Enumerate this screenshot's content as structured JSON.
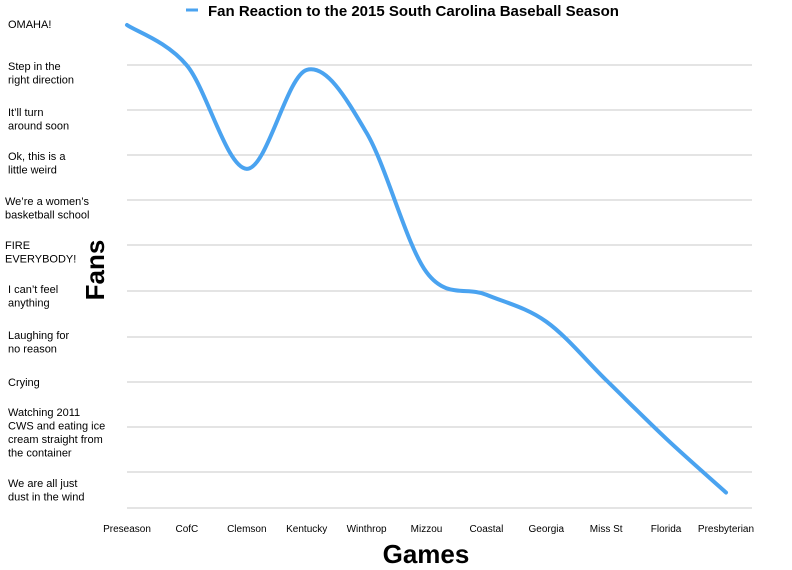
{
  "chart_data": {
    "type": "line",
    "title": "Fan Reaction to the 2015 South Carolina Baseball Season",
    "xlabel": "Games",
    "ylabel": "Fans",
    "categories": [
      "Preseason",
      "CofC",
      "Clemson",
      "Kentucky",
      "Winthrop",
      "Mizzou",
      "Coastal",
      "Georgia",
      "Miss St",
      "Florida",
      "Presbyterian"
    ],
    "y_levels": [
      "We are all just dust in the wind",
      "Watching 2011 CWS and eating ice cream straight from the container",
      "Crying",
      "Laughing for no reason",
      "I can't feel anything",
      "FIRE EVERYBODY!",
      "We're a women's basketball school",
      "Ok, this is a little weird",
      "It'll turn around soon",
      "Step in the right direction",
      "OMAHA!"
    ],
    "ylim": [
      0,
      10.5
    ],
    "series": [
      {
        "name": "Fan Reaction to the 2015 South Carolina Baseball Season",
        "values": [
          10.5,
          9.6,
          7.3,
          9.5,
          8.1,
          5.0,
          4.5,
          3.9,
          2.6,
          1.3,
          0.1
        ]
      }
    ],
    "legend": "top",
    "grid": true,
    "colors": {
      "line": "#4aa3f0",
      "grid": "#c8c8c8"
    }
  }
}
